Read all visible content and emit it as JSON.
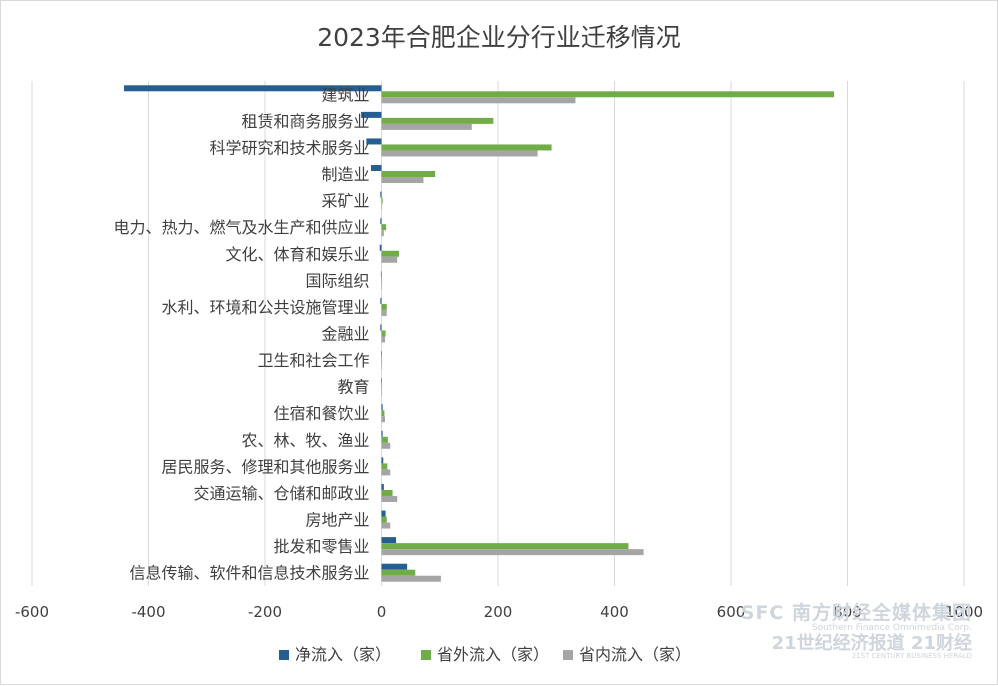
{
  "chart_data": {
    "type": "bar",
    "orientation": "horizontal",
    "title": "2023年合肥企业分行业迁移情况",
    "categories": [
      "建筑业",
      "租赁和商务服务业",
      "科学研究和技术服务业",
      "制造业",
      "采矿业",
      "电力、热力、燃气及水生产和供应业",
      "文化、体育和娱乐业",
      "国际组织",
      "水利、环境和公共设施管理业",
      "金融业",
      "卫生和社会工作",
      "教育",
      "住宿和餐饮业",
      "农、林、牧、渔业",
      "居民服务、修理和其他服务业",
      "交通运输、仓储和邮政业",
      "房地产业",
      "批发和零售业",
      "信息传输、软件和信息技术服务业"
    ],
    "series": [
      {
        "name": "净流入（家）",
        "color": "#255e91",
        "values": [
          -442,
          -35,
          -26,
          -18,
          -2,
          -2,
          -3,
          -1,
          -2,
          -2,
          0,
          0,
          2,
          2,
          3,
          4,
          7,
          25,
          44
        ]
      },
      {
        "name": "省外流入（家）",
        "color": "#70ad47",
        "values": [
          777,
          192,
          292,
          92,
          2,
          8,
          30,
          1,
          9,
          7,
          1,
          1,
          5,
          11,
          10,
          19,
          9,
          424,
          58
        ]
      },
      {
        "name": "省内流入（家）",
        "color": "#a5a5a5",
        "values": [
          333,
          155,
          268,
          72,
          1,
          4,
          27,
          1,
          9,
          6,
          1,
          1,
          6,
          15,
          15,
          27,
          15,
          450,
          102
        ]
      }
    ],
    "x_ticks": [
      "-600",
      "-400",
      "-200",
      "0",
      "200",
      "400",
      "600",
      "800",
      "1000"
    ],
    "xlim": [
      -600,
      1000
    ],
    "grid": true,
    "legend_position": "bottom"
  },
  "watermark": {
    "line1": "SFC 南方财经全媒体集团",
    "line2": "Southern Finance Omnimedia Corp.",
    "line3": "21世纪经济报道 21财经",
    "line4": "21ST CENTURY BUSINESS HERALD"
  }
}
